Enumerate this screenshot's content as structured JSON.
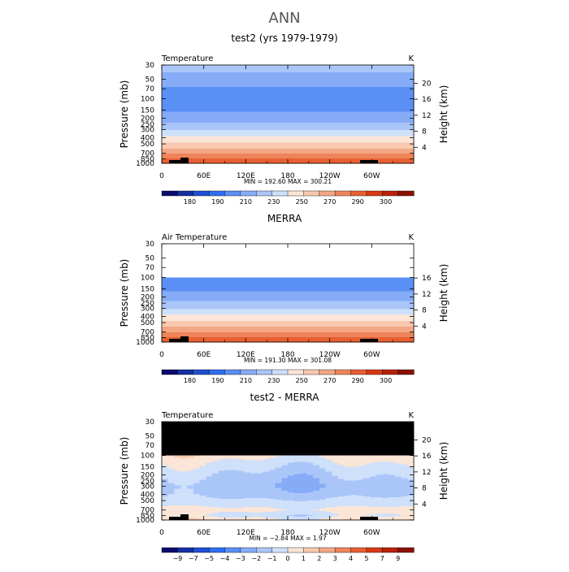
{
  "figure": {
    "title": "ANN"
  },
  "colors": {
    "temp_levels": [
      "#0a0a6e",
      "#1430a0",
      "#1e4fd0",
      "#2f6ef0",
      "#5a8ff5",
      "#86abf7",
      "#aac6f9",
      "#cfe0fb",
      "#fbe5d6",
      "#f8c9b0",
      "#f3a784",
      "#ee845a",
      "#e85f33",
      "#d83a14",
      "#b8220a",
      "#8a1200"
    ],
    "diff_levels": [
      "#0a0a6e",
      "#1430a0",
      "#1e4fd0",
      "#2f6ef0",
      "#5a8ff5",
      "#86abf7",
      "#aac6f9",
      "#cfe0fb",
      "#fbe5d6",
      "#f8c9b0",
      "#f3a784",
      "#ee845a",
      "#e85f33",
      "#d83a14",
      "#b8220a",
      "#8a1200"
    ],
    "missing": "#000000",
    "topography": "#000000"
  },
  "chart_data": [
    {
      "type": "heatmap",
      "title": "test2 (yrs 1979-1979)",
      "variable": "Temperature",
      "units": "K",
      "x_ticks": [
        "0",
        "60E",
        "120E",
        "180",
        "120W",
        "60W"
      ],
      "y_ticks": [
        "30",
        "50",
        "70",
        "100",
        "150",
        "200",
        "250",
        "300",
        "400",
        "500",
        "700",
        "850",
        "1000"
      ],
      "yaxis_left_label": "Pressure (mb)",
      "yaxis_right_label": "Height (km)",
      "right_ticks": [
        "4",
        "8",
        "12",
        "16",
        "20"
      ],
      "stats_text": "MIN = 192.60   MAX = 300.21",
      "min": 192.6,
      "max": 300.21,
      "colorbar_labels": [
        "180",
        "190",
        "210",
        "230",
        "250",
        "270",
        "290",
        "300"
      ],
      "contour_levels": [
        180,
        185,
        190,
        200,
        210,
        220,
        230,
        240,
        250,
        260,
        270,
        280,
        290,
        295,
        300
      ],
      "data_range_mb": [
        30,
        1000
      ],
      "profile": [
        [
          30,
          225
        ],
        [
          50,
          215
        ],
        [
          70,
          209
        ],
        [
          100,
          203
        ],
        [
          150,
          208
        ],
        [
          200,
          216
        ],
        [
          250,
          222
        ],
        [
          300,
          229
        ],
        [
          400,
          243
        ],
        [
          500,
          253
        ],
        [
          700,
          269
        ],
        [
          850,
          280
        ],
        [
          1000,
          289
        ]
      ]
    },
    {
      "type": "heatmap",
      "title": "MERRA",
      "variable": "Air Temperature",
      "units": "K",
      "x_ticks": [
        "0",
        "60E",
        "120E",
        "180",
        "120W",
        "60W"
      ],
      "y_ticks": [
        "30",
        "50",
        "70",
        "100",
        "150",
        "200",
        "250",
        "300",
        "400",
        "500",
        "700",
        "850",
        "1000"
      ],
      "yaxis_left_label": "Pressure (mb)",
      "yaxis_right_label": "Height (km)",
      "right_ticks": [
        "4",
        "8",
        "12",
        "16"
      ],
      "stats_text": "MIN = 191.30   MAX = 301.08",
      "min": 191.3,
      "max": 301.08,
      "colorbar_labels": [
        "180",
        "190",
        "210",
        "230",
        "250",
        "270",
        "290",
        "300"
      ],
      "contour_levels": [
        180,
        185,
        190,
        200,
        210,
        220,
        230,
        240,
        250,
        260,
        270,
        280,
        290,
        295,
        300
      ],
      "data_range_mb": [
        100,
        1000
      ],
      "profile": [
        [
          100,
          203
        ],
        [
          150,
          208
        ],
        [
          200,
          216
        ],
        [
          250,
          222
        ],
        [
          300,
          229
        ],
        [
          400,
          243
        ],
        [
          500,
          253
        ],
        [
          700,
          269
        ],
        [
          850,
          280
        ],
        [
          1000,
          289
        ]
      ]
    },
    {
      "type": "heatmap",
      "title": "test2 - MERRA",
      "variable": "Temperature",
      "units": "K",
      "x_ticks": [
        "0",
        "60E",
        "120E",
        "180",
        "120W",
        "60W"
      ],
      "y_ticks": [
        "30",
        "50",
        "70",
        "100",
        "150",
        "200",
        "250",
        "300",
        "400",
        "500",
        "700",
        "850",
        "1000"
      ],
      "yaxis_left_label": "Pressure (mb)",
      "yaxis_right_label": "Height (km)",
      "right_ticks": [
        "4",
        "8",
        "12",
        "16",
        "20"
      ],
      "stats_text": "MIN = −2.84   MAX = 1.97",
      "min": -2.84,
      "max": 1.97,
      "colorbar_labels": [
        "−9",
        "−7",
        "−5",
        "−4",
        "−3",
        "−2",
        "−1",
        "0",
        "1",
        "2",
        "3",
        "4",
        "5",
        "7",
        "9"
      ],
      "contour_levels": [
        -9,
        -7,
        -5,
        -4,
        -3,
        -2,
        -1,
        0,
        1,
        2,
        3,
        4,
        5,
        7,
        9
      ],
      "data_range_mb": [
        100,
        1000
      ],
      "profile": [
        [
          100,
          0.4
        ],
        [
          150,
          -0.6
        ],
        [
          200,
          -1.2
        ],
        [
          250,
          -1.6
        ],
        [
          300,
          -1.8
        ],
        [
          400,
          -1.4
        ],
        [
          500,
          -0.8
        ],
        [
          700,
          0.3
        ],
        [
          850,
          -0.4
        ],
        [
          1000,
          0.6
        ]
      ]
    }
  ]
}
